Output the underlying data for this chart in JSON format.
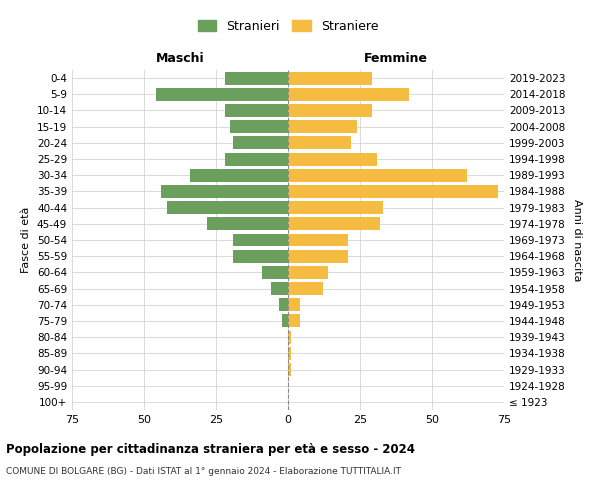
{
  "age_groups": [
    "100+",
    "95-99",
    "90-94",
    "85-89",
    "80-84",
    "75-79",
    "70-74",
    "65-69",
    "60-64",
    "55-59",
    "50-54",
    "45-49",
    "40-44",
    "35-39",
    "30-34",
    "25-29",
    "20-24",
    "15-19",
    "10-14",
    "5-9",
    "0-4"
  ],
  "birth_years": [
    "≤ 1923",
    "1924-1928",
    "1929-1933",
    "1934-1938",
    "1939-1943",
    "1944-1948",
    "1949-1953",
    "1954-1958",
    "1959-1963",
    "1964-1968",
    "1969-1973",
    "1974-1978",
    "1979-1983",
    "1984-1988",
    "1989-1993",
    "1994-1998",
    "1999-2003",
    "2004-2008",
    "2009-2013",
    "2014-2018",
    "2019-2023"
  ],
  "maschi": [
    0,
    0,
    0,
    0,
    0,
    2,
    3,
    6,
    9,
    19,
    19,
    28,
    42,
    44,
    34,
    22,
    19,
    20,
    22,
    46,
    22
  ],
  "femmine": [
    0,
    0,
    1,
    1,
    1,
    4,
    4,
    12,
    14,
    21,
    21,
    32,
    33,
    73,
    62,
    31,
    22,
    24,
    29,
    42,
    29
  ],
  "color_maschi": "#6a9f5e",
  "color_femmine": "#f5bc42",
  "title": "Popolazione per cittadinanza straniera per età e sesso - 2024",
  "subtitle": "COMUNE DI BOLGARE (BG) - Dati ISTAT al 1° gennaio 2024 - Elaborazione TUTTITALIA.IT",
  "label_maschi_col": "Maschi",
  "label_femmine_col": "Femmine",
  "ylabel_left": "Fasce di età",
  "ylabel_right": "Anni di nascita",
  "legend_maschi": "Stranieri",
  "legend_femmine": "Straniere",
  "xlim": 75,
  "background_color": "#ffffff",
  "grid_color": "#cccccc",
  "centerline_color": "#888888"
}
